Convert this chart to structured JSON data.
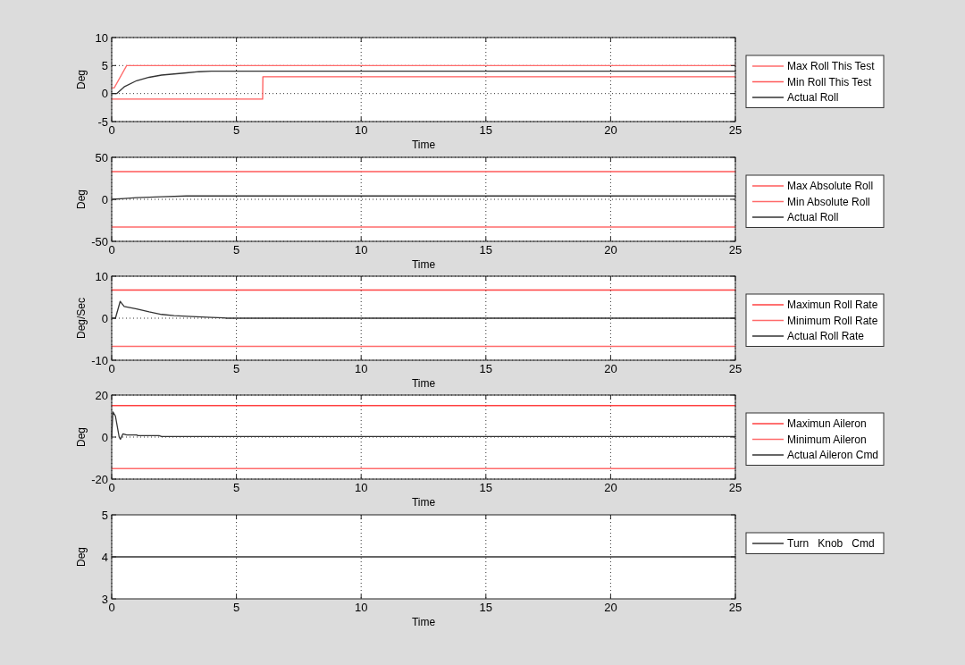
{
  "chart_data": [
    {
      "type": "line",
      "xlabel": "Time",
      "ylabel": "Deg",
      "xlim": [
        0,
        25
      ],
      "ylim": [
        -5,
        10
      ],
      "xticks": [
        0,
        5,
        10,
        15,
        20,
        25
      ],
      "yticks": [
        -5,
        0,
        5,
        10
      ],
      "grid": true,
      "legend": "right",
      "series": [
        {
          "name": "Max Roll This Test",
          "color": "#ff6b6b",
          "x": [
            0,
            0.1,
            0.6,
            25
          ],
          "values": [
            1,
            1,
            5,
            5
          ]
        },
        {
          "name": "Min Roll This Test",
          "color": "#ff5a5a",
          "x": [
            0,
            6.05,
            6.06,
            25
          ],
          "values": [
            -1,
            -1,
            3,
            3
          ]
        },
        {
          "name": "Actual Roll",
          "color": "#333333",
          "x": [
            0,
            0.2,
            0.5,
            1,
            1.5,
            2,
            2.5,
            3,
            3.5,
            4,
            25
          ],
          "values": [
            0,
            0,
            1.2,
            2.3,
            2.9,
            3.3,
            3.5,
            3.7,
            3.9,
            4,
            4
          ]
        }
      ]
    },
    {
      "type": "line",
      "xlabel": "Time",
      "ylabel": "Deg",
      "xlim": [
        0,
        25
      ],
      "ylim": [
        -50,
        50
      ],
      "xticks": [
        0,
        5,
        10,
        15,
        20,
        25
      ],
      "yticks": [
        -50,
        0,
        50
      ],
      "grid": true,
      "legend": "right",
      "series": [
        {
          "name": "Max Absolute Roll",
          "color": "#ff5a5a",
          "x": [
            0,
            25
          ],
          "values": [
            33,
            33
          ]
        },
        {
          "name": "Min Absolute Roll",
          "color": "#ff6b6b",
          "x": [
            0,
            25
          ],
          "values": [
            -33,
            -33
          ]
        },
        {
          "name": "Actual Roll",
          "color": "#333333",
          "x": [
            0,
            0.5,
            1,
            2,
            3,
            4,
            25
          ],
          "values": [
            0,
            1,
            2,
            3,
            4,
            4,
            4
          ]
        }
      ]
    },
    {
      "type": "line",
      "xlabel": "Time",
      "ylabel": "Deg/Sec",
      "xlim": [
        0,
        25
      ],
      "ylim": [
        -10,
        10
      ],
      "xticks": [
        0,
        5,
        10,
        15,
        20,
        25
      ],
      "yticks": [
        -10,
        0,
        10
      ],
      "grid": true,
      "legend": "right",
      "series": [
        {
          "name": "Maximun Roll Rate",
          "color": "#ff4040",
          "x": [
            0,
            25
          ],
          "values": [
            6.7,
            6.7
          ]
        },
        {
          "name": "Minimum Roll Rate",
          "color": "#ff6b6b",
          "x": [
            0,
            25
          ],
          "values": [
            -6.7,
            -6.7
          ]
        },
        {
          "name": "Actual Roll Rate",
          "color": "#333333",
          "x": [
            0,
            0.15,
            0.34,
            0.5,
            1,
            1.5,
            2,
            2.5,
            3.2,
            4,
            4.5,
            4.6,
            25
          ],
          "values": [
            0,
            0,
            4,
            2.8,
            2.2,
            1.5,
            0.9,
            0.6,
            0.4,
            0.2,
            0.1,
            0,
            0
          ]
        }
      ]
    },
    {
      "type": "line",
      "xlabel": "Time",
      "ylabel": "Deg",
      "xlim": [
        0,
        25
      ],
      "ylim": [
        -20,
        20
      ],
      "xticks": [
        0,
        5,
        10,
        15,
        20,
        25
      ],
      "yticks": [
        -20,
        0,
        20
      ],
      "grid": true,
      "legend": "right",
      "series": [
        {
          "name": "Maximun Aileron",
          "color": "#ff4040",
          "x": [
            0,
            25
          ],
          "values": [
            15,
            15
          ]
        },
        {
          "name": "Minimum Aileron",
          "color": "#ff6b6b",
          "x": [
            0,
            25
          ],
          "values": [
            -15,
            -15
          ]
        },
        {
          "name": "Actual Aileron Cmd",
          "color": "#333333",
          "x": [
            0,
            0.05,
            0.15,
            0.3,
            0.35,
            0.45,
            0.6,
            1,
            1.05,
            1.9,
            2,
            25
          ],
          "values": [
            0,
            12,
            10,
            0,
            -1,
            1.5,
            1,
            1,
            0.7,
            0.7,
            0.3,
            0.3
          ]
        }
      ]
    },
    {
      "type": "line",
      "xlabel": "Time",
      "ylabel": "Deg",
      "xlim": [
        0,
        25
      ],
      "ylim": [
        3,
        5
      ],
      "xticks": [
        0,
        5,
        10,
        15,
        20,
        25
      ],
      "yticks": [
        3,
        4,
        5
      ],
      "grid": "x",
      "legend": "right",
      "series": [
        {
          "name": "Turn   Knob   Cmd",
          "color": "#333333",
          "x": [
            0,
            25
          ],
          "values": [
            4,
            4
          ]
        }
      ]
    }
  ]
}
